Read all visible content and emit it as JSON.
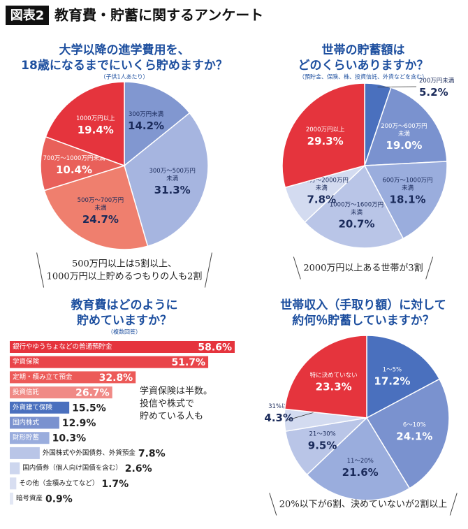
{
  "header": {
    "label": "図表2",
    "title": "教育費・貯蓄に関するアンケート"
  },
  "chart_data": [
    {
      "type": "pie",
      "title": [
        "大学以降の進学費用を、",
        "18歳になるまでにいくら貯めますか？"
      ],
      "subtitle": "（子供1人あたり）",
      "categories": [
        [
          "300万円未満"
        ],
        [
          "300万～500万円",
          "未満"
        ],
        [
          "500万～700万円",
          "未満"
        ],
        [
          "700万～1000万円未満"
        ],
        [
          "1000万円以上"
        ]
      ],
      "values": [
        14.2,
        31.3,
        24.7,
        10.4,
        19.4
      ],
      "value_labels": [
        "14.2%",
        "31.3%",
        "24.7%",
        "10.4%",
        "19.4%"
      ],
      "colors": [
        "#8197d0",
        "#a6b5e0",
        "#ef7f6e",
        "#e9605a",
        "#e5343d"
      ],
      "annotation": [
        "500万円以上は5割以上、",
        "1000万円以上貯めるつもりの人も2割"
      ]
    },
    {
      "type": "pie",
      "title": [
        "世帯の貯蓄額は",
        "どのくらいありますか？"
      ],
      "subtitle": "（預貯金、保険、株、投資信託、外貨などを含む）",
      "categories": [
        [
          "200万円未満"
        ],
        [
          "200万～600万円",
          "未満"
        ],
        [
          "600万～1000万円",
          "未満"
        ],
        [
          "1000万～1600万円",
          "未満"
        ],
        [
          "1600万～2000万円",
          "未満"
        ],
        [
          "2000万円以上"
        ]
      ],
      "values": [
        5.2,
        19.0,
        18.1,
        20.7,
        7.8,
        29.3
      ],
      "value_labels": [
        "5.2%",
        "19.0%",
        "18.1%",
        "20.7%",
        "7.8%",
        "29.3%"
      ],
      "colors": [
        "#4a70be",
        "#7a92cf",
        "#9aaddd",
        "#b9c5e7",
        "#d3dbf0",
        "#e5343d"
      ],
      "annotation": [
        "2000万円以上ある世帯が3割"
      ]
    },
    {
      "type": "bar",
      "title": [
        "教育費はどのように",
        "貯めていますか？"
      ],
      "subtitle": "（複数回答）",
      "categories": [
        "銀行やゆうちょなどの普通預貯金",
        "学資保険",
        "定期・積み立て預金",
        "投資信託",
        "外貨建て保険",
        "国内株式",
        "財形貯蓄",
        "外国株式や外国債券、外貨預金",
        "国内債券（個人向け国債を含む）",
        "その他（金積み立てなど）",
        "暗号資産"
      ],
      "values": [
        58.6,
        51.7,
        32.8,
        26.7,
        15.5,
        12.9,
        10.3,
        7.8,
        2.6,
        1.7,
        0.9
      ],
      "value_labels": [
        "58.6%",
        "51.7%",
        "32.8%",
        "26.7%",
        "15.5%",
        "12.9%",
        "10.3%",
        "7.8%",
        "2.6%",
        "1.7%",
        "0.9%"
      ],
      "colors": [
        "#e5343d",
        "#e9454a",
        "#ec5a58",
        "#f08a86",
        "#4a70be",
        "#7a92cf",
        "#9aaddd",
        "#b9c5e7",
        "#cdd6ee",
        "#d8def1",
        "#e2e7f4"
      ],
      "annotation": [
        "学資保険は半数。",
        "投信や株式で",
        "貯めている人も"
      ]
    },
    {
      "type": "pie",
      "title": [
        "世帯収入（手取り額）に対して",
        "約何％貯蓄していますか？"
      ],
      "categories": [
        [
          "1～5%"
        ],
        [
          "6～10%"
        ],
        [
          "11～20%"
        ],
        [
          "21～30%"
        ],
        [
          "31%以上"
        ],
        [
          "特に決めていない"
        ]
      ],
      "values": [
        17.2,
        24.1,
        21.6,
        9.5,
        4.3,
        23.3
      ],
      "value_labels": [
        "17.2%",
        "24.1%",
        "21.6%",
        "9.5%",
        "4.3%",
        "23.3%"
      ],
      "colors": [
        "#4a70be",
        "#7a92cf",
        "#9aaddd",
        "#b9c5e7",
        "#d3dbf0",
        "#e5343d"
      ],
      "annotation": [
        "20%以下が6割、決めていないが2割以上"
      ]
    }
  ]
}
